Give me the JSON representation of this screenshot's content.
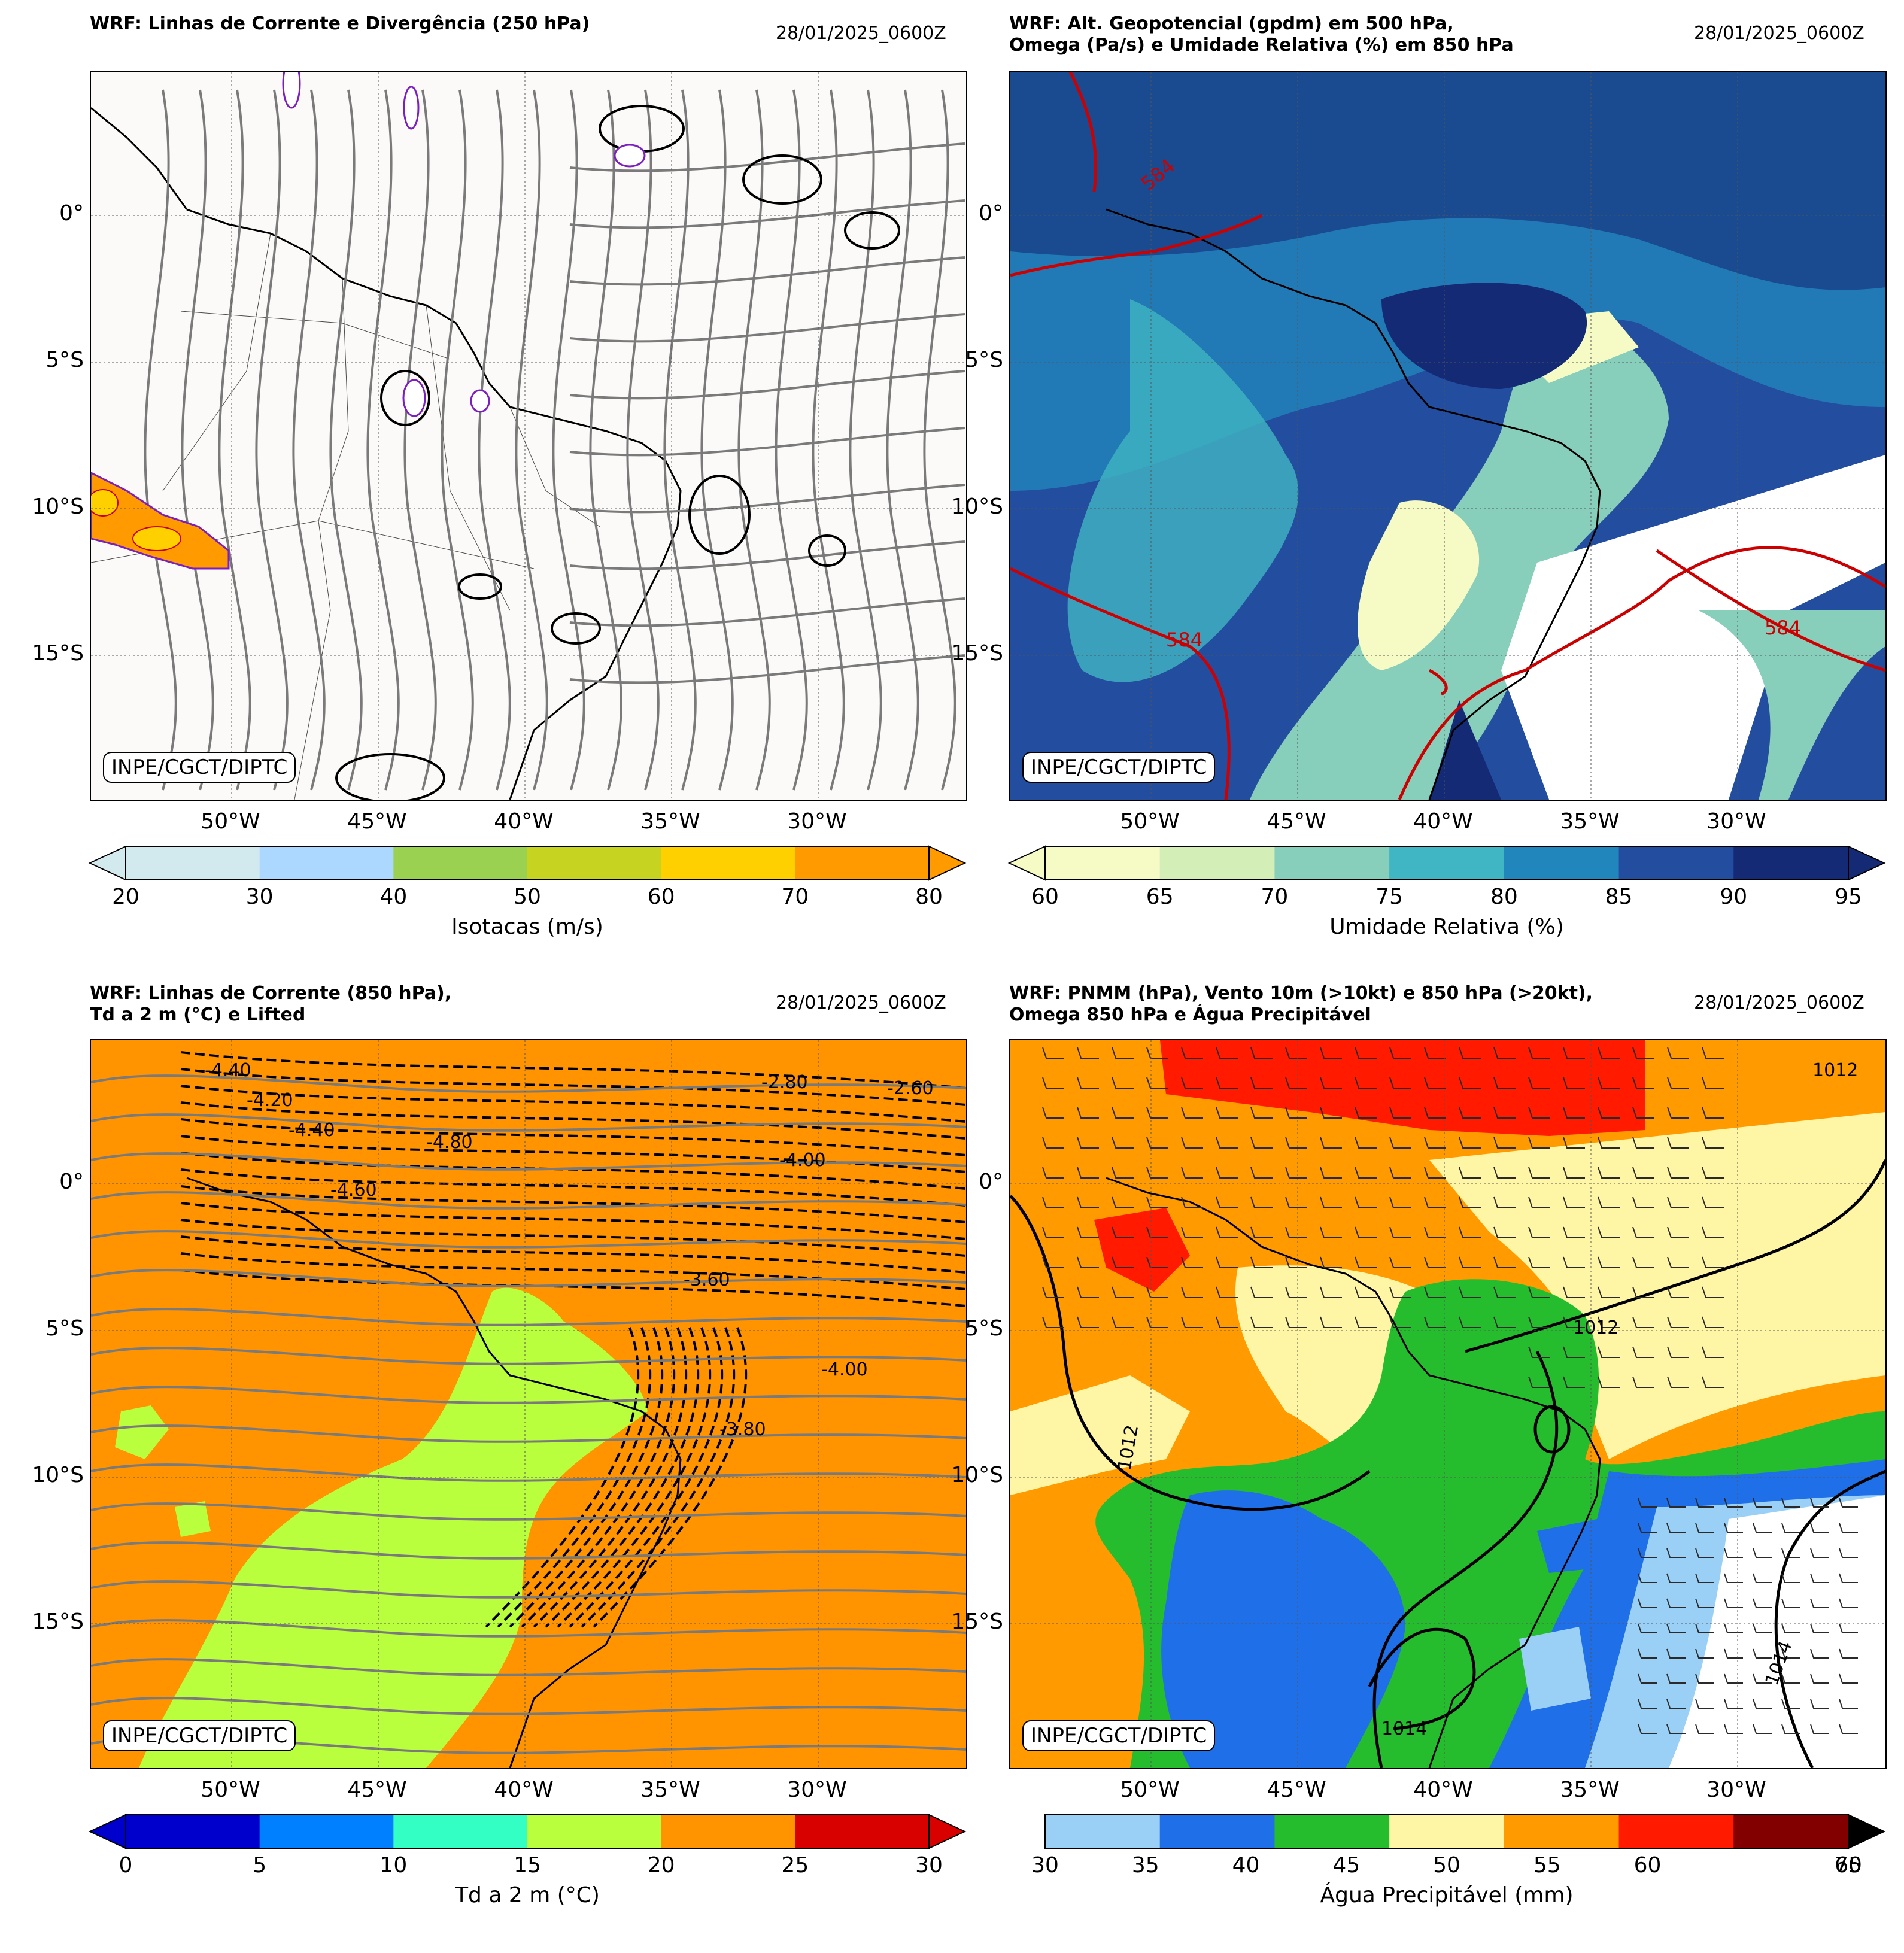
{
  "date": "28/01/2025_0600Z",
  "credit": "INPE/CGCT/DIPTC",
  "lat_labels": [
    "0°",
    "5°S",
    "10°S",
    "15°S"
  ],
  "lon_labels": [
    "50°W",
    "45°W",
    "40°W",
    "35°W",
    "30°W"
  ],
  "panels": {
    "p1": {
      "title": "WRF: Linhas de Corrente e Divergência (250 hPa)",
      "colorbar_label": "Isotacas (m/s)",
      "ticks": [
        "20",
        "30",
        "40",
        "50",
        "60",
        "70",
        "80"
      ],
      "colors": [
        "#d2e9ee",
        "#acd8ff",
        "#9bd150",
        "#c6d321",
        "#ffd000",
        "#ff9a00"
      ]
    },
    "p2": {
      "title": "WRF: Alt. Geopotencial (gpdm) em 500 hPa,\nOmega (Pa/s) e Umidade Relativa (%) em 850 hPa",
      "colorbar_label": "Umidade Relativa (%)",
      "ticks": [
        "60",
        "65",
        "70",
        "75",
        "80",
        "85",
        "90",
        "95"
      ],
      "colors": [
        "#f6fac5",
        "#d3eeb6",
        "#87cebb",
        "#40b5c3",
        "#2186bc",
        "#234d9e",
        "#152a74"
      ],
      "contour_labels": [
        "584",
        "584",
        "584"
      ]
    },
    "p3": {
      "title": "WRF: Linhas de Corrente (850 hPa),\nTd a 2 m (°C) e Lifted",
      "colorbar_label": "Td a 2 m (°C)",
      "ticks": [
        "0",
        "5",
        "10",
        "15",
        "20",
        "25",
        "30"
      ],
      "colors": [
        "#0000cc",
        "#0080ff",
        "#33ffc4",
        "#baff3d",
        "#ff9300",
        "#d90000"
      ],
      "contour_labels": [
        "-4.40",
        "-4.20",
        "-4.40",
        "-4.80",
        "-4.60",
        "-4.00",
        "-3.60",
        "-4.00",
        "-3.80",
        "-2.80",
        "-2.60"
      ]
    },
    "p4": {
      "title": "WRF: PNMM (hPa), Vento 10m (>10kt) e 850 hPa (>20kt),\nOmega 850 hPa e Água Precipitável",
      "colorbar_label": "Água Precipitável (mm)",
      "ticks": [
        "30",
        "35",
        "40",
        "45",
        "50",
        "55",
        "60",
        "65",
        "70"
      ],
      "colors": [
        "#9ad0f5",
        "#1e6fe8",
        "#25bd2e",
        "#fff6a5",
        "#ff9a00",
        "#ff1a00",
        "#820000"
      ],
      "contour_labels": [
        "1012",
        "1012",
        "1012",
        "1014",
        "1014"
      ]
    }
  },
  "colors": {
    "streamline": "#7a7a7a",
    "geopotential_contour": "#cc0000",
    "map_background": "#fcfaf8"
  }
}
